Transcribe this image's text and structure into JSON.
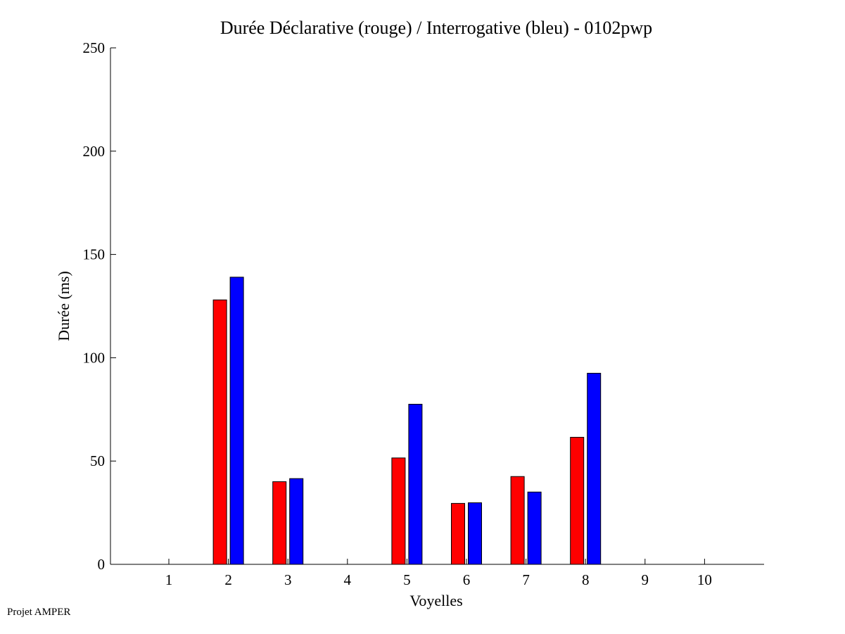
{
  "chart_data": {
    "type": "bar",
    "title": "Durée Déclarative (rouge) / Interrogative (bleu) - 0102pwp",
    "xlabel": "Voyelles",
    "ylabel": "Durée (ms)",
    "categories": [
      "1",
      "2",
      "3",
      "4",
      "5",
      "6",
      "7",
      "8",
      "9",
      "10"
    ],
    "ylim": [
      0,
      250
    ],
    "yticks": [
      0,
      50,
      100,
      150,
      200,
      250
    ],
    "grid": false,
    "series": [
      {
        "color": "#ff0000",
        "values": [
          0,
          128,
          40,
          0,
          51.5,
          29.5,
          42.5,
          61.5,
          0,
          0
        ]
      },
      {
        "color": "#0000ff",
        "values": [
          0,
          139,
          41.5,
          0,
          77.5,
          29.8,
          35,
          92.5,
          0,
          0
        ]
      }
    ]
  },
  "footer": "Projet AMPER"
}
